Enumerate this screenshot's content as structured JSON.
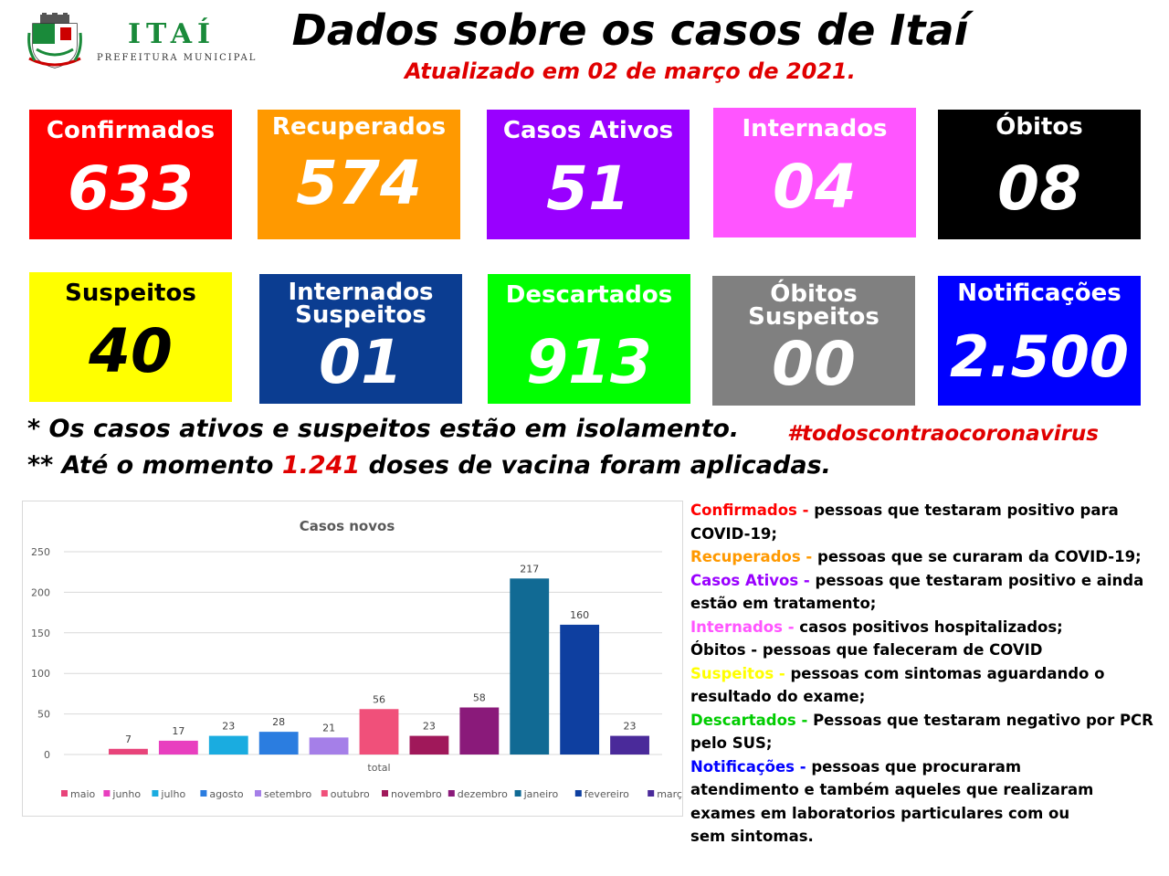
{
  "header": {
    "brand_name": "ITAÍ",
    "brand_sub": "PREFEITURA MUNICIPAL",
    "title": "Dados sobre os casos de Itaí",
    "subtitle": "Atualizado em 02 de março de 2021."
  },
  "cards": [
    {
      "label": "Confirmados",
      "value": "633",
      "bg": "#ff0000",
      "fg": "#ffffff"
    },
    {
      "label": "Recuperados",
      "value": "574",
      "bg": "#ff9900",
      "fg": "#ffffff"
    },
    {
      "label": "Casos Ativos",
      "value": "51",
      "bg": "#9900ff",
      "fg": "#ffffff"
    },
    {
      "label": "Internados",
      "value": "04",
      "bg": "#ff55ff",
      "fg": "#ffffff"
    },
    {
      "label": "Óbitos",
      "value": "08",
      "bg": "#000000",
      "fg": "#ffffff"
    },
    {
      "label": "Suspeitos",
      "value": "40",
      "bg": "#ffff00",
      "fg": "#000000"
    },
    {
      "label": "Internados Suspeitos",
      "value": "01",
      "bg": "#0b3d91",
      "fg": "#ffffff"
    },
    {
      "label": "Descartados",
      "value": "913",
      "bg": "#00ff00",
      "fg": "#ffffff"
    },
    {
      "label": "Óbitos Suspeitos",
      "value": "00",
      "bg": "#808080",
      "fg": "#ffffff"
    },
    {
      "label": "Notificações",
      "value": "2.500",
      "bg": "#0000ff",
      "fg": "#ffffff"
    }
  ],
  "notes": {
    "note1": "* Os casos ativos e suspeitos estão em isolamento.",
    "note2_pre": "** Até o momento ",
    "note2_highlight": "1.241",
    "note2_post": " doses de vacina foram aplicadas.",
    "hashtag": "#todoscontraocoronavirus"
  },
  "chart_data": {
    "type": "bar",
    "title": "Casos novos",
    "categories": [
      "total"
    ],
    "series": [
      {
        "name": "maio",
        "values": [
          7
        ],
        "color": "#e8447a"
      },
      {
        "name": "junho",
        "values": [
          17
        ],
        "color": "#e83fbf"
      },
      {
        "name": "julho",
        "values": [
          23
        ],
        "color": "#1aace0"
      },
      {
        "name": "agosto",
        "values": [
          28
        ],
        "color": "#2b7de0"
      },
      {
        "name": "setembro",
        "values": [
          21
        ],
        "color": "#a57fe8"
      },
      {
        "name": "outubro",
        "values": [
          56
        ],
        "color": "#f0507a"
      },
      {
        "name": "novembro",
        "values": [
          23
        ],
        "color": "#a0185a"
      },
      {
        "name": "dezembro",
        "values": [
          58
        ],
        "color": "#8a1a7a"
      },
      {
        "name": "janeiro",
        "values": [
          217
        ],
        "color": "#116a94"
      },
      {
        "name": "fevereiro",
        "values": [
          160
        ],
        "color": "#0e3fa0"
      },
      {
        "name": "março",
        "values": [
          23
        ],
        "color": "#4a2a9a"
      }
    ],
    "yticks": [
      "0",
      "50",
      "100",
      "150",
      "200",
      "250"
    ],
    "ylim": [
      0,
      250
    ],
    "grid": true,
    "legend": "bottom"
  },
  "legend_text": [
    {
      "term": "Confirmados - ",
      "term_color": "#ff0000",
      "desc": "pessoas que testaram positivo para",
      "cont": "COVID-19;"
    },
    {
      "term": "Recuperados - ",
      "term_color": "#ff9900",
      "desc": "pessoas que se curaram da COVID-19;",
      "cont": ""
    },
    {
      "term": "Casos Ativos - ",
      "term_color": "#9900ff",
      "desc": "pessoas que testaram positivo e ainda",
      "cont": "estão em tratamento;"
    },
    {
      "term": "Internados - ",
      "term_color": "#ff55ff",
      "desc": " casos positivos hospitalizados;",
      "cont": ""
    },
    {
      "term": "Óbitos - ",
      "term_color": "#000000",
      "desc": "pessoas que faleceram de COVID",
      "cont": ""
    },
    {
      "term": "Suspeitos - ",
      "term_color": "#ffff00",
      "desc": "pessoas com sintomas aguardando o",
      "cont": "resultado do exame;"
    },
    {
      "term": "Descartados - ",
      "term_color": "#00cc00",
      "desc": "Pessoas que testaram negativo por PCR",
      "cont": "pelo SUS;"
    },
    {
      "term": "Notificações - ",
      "term_color": "#0000ff",
      "desc": "pessoas que procuraram",
      "cont": "atendimento e também aqueles que realizaram exames em laboratorios particulares com ou sem sintomas."
    }
  ]
}
